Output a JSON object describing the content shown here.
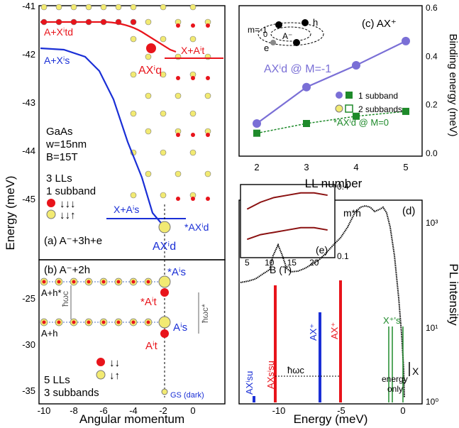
{
  "colors": {
    "red": "#e8141b",
    "blue": "#1a2fd6",
    "yellow": "#f2ea72",
    "green": "#1e8a2a",
    "purple": "#7a6fd6",
    "dark_red": "#8a1010"
  },
  "panel_a": {
    "label": "(a) A⁻+3h+e",
    "sample": [
      "GaAs",
      "w=15nm",
      "B=15T"
    ],
    "config": [
      "3 LLs",
      "1 subband"
    ],
    "legend_red": "↓↓↓",
    "legend_yellow": "↓↓↑",
    "ann": {
      "a_xtd": "A+Xⁱtd",
      "a_xs": "A+Xⁱs",
      "ax_q": "AXⁱq",
      "x_at": "X+Aⁱt",
      "x_as": "X+Aⁱs",
      "ax_d_star": "*AXⁱd",
      "ax_d": "AXⁱd"
    }
  },
  "panel_b": {
    "label": "(b) A⁻+2h",
    "config": [
      "5 LLs",
      "3 subbands"
    ],
    "legend_red": "↓↓",
    "legend_yellow": "↓↑",
    "gs": "GS (dark)",
    "ann": {
      "a_h_star": "A+h*",
      "a_h": "A+h",
      "hw": "ħωc",
      "hw_star": "ħωc*",
      "as_star": "*Aⁱs",
      "at_star": "*Aⁱt",
      "as": "Aⁱs",
      "at": "Aⁱt"
    }
  },
  "axes_ab": {
    "ylabel": "Energy (meV)",
    "xlabel": "Angular momentum",
    "yticks_a": [
      "-41",
      "-42",
      "-43",
      "-44",
      "-45"
    ],
    "yticks_b": [
      "-25",
      "-30",
      "-35"
    ],
    "xticks": [
      "-10",
      "-8",
      "-6",
      "-4",
      "-2",
      "0"
    ]
  },
  "panel_c": {
    "label": "(c) AX⁺",
    "ylabel": "Binding energy (meV)",
    "xlabel": "LL number",
    "xticks": [
      "2",
      "3",
      "4",
      "5"
    ],
    "yticks": [
      "0.6",
      "0.4",
      "0.2",
      "0.0"
    ],
    "ann_m1": "AXⁱd @ M=-1",
    "ann_m0": "*AXⁱd @ M=0",
    "legend1": "1 subband",
    "legend2": "2 subbands",
    "inset": {
      "m": "m=-1",
      "zero": "0",
      "a": "A⁻",
      "h": "h",
      "e": "e"
    }
  },
  "panel_d": {
    "label": "(d)",
    "ylabel": "PL intensity",
    "xlabel": "Energy (meV)",
    "xticks": [
      "-10",
      "-5",
      "0"
    ],
    "ax_su": "AXⁱsu",
    "axs_su": "AXsⁱsu",
    "ax_plus": "AX⁺",
    "ax_plus2": "AX⁺",
    "x_s": "X⁺'s",
    "x": "X",
    "hw": "ħωc",
    "energy_only": [
      "energy",
      "only"
    ]
  },
  "panel_e": {
    "label": "(e)",
    "ylabel": "m*h",
    "xlabel": "B (T)",
    "xticks": [
      "5",
      "10",
      "15",
      "20"
    ],
    "yticks": [
      "0.4",
      "0.1"
    ]
  },
  "chart_data": [
    {
      "type": "line",
      "title": "(c) AX⁺",
      "xlabel": "LL number",
      "ylabel": "Binding energy (meV)",
      "ylim": [
        0,
        0.6
      ],
      "x": [
        2,
        3,
        4,
        5
      ],
      "series": [
        {
          "name": "AXd @ M=-1",
          "values": [
            0.12,
            0.27,
            0.36,
            0.46
          ]
        },
        {
          "name": "*AXd @ M=0",
          "values": [
            0.08,
            0.12,
            0.15,
            0.17
          ]
        }
      ]
    },
    {
      "type": "line",
      "title": "(e)",
      "xlabel": "B (T)",
      "ylabel": "m*h",
      "x": [
        5,
        8,
        11,
        14,
        17,
        20,
        23
      ],
      "series": [
        {
          "name": "upper",
          "values": [
            0.3,
            0.33,
            0.35,
            0.36,
            0.37,
            0.37,
            0.36
          ]
        },
        {
          "name": "lower",
          "values": [
            0.17,
            0.19,
            0.2,
            0.21,
            0.22,
            0.22,
            0.21
          ]
        }
      ]
    }
  ]
}
